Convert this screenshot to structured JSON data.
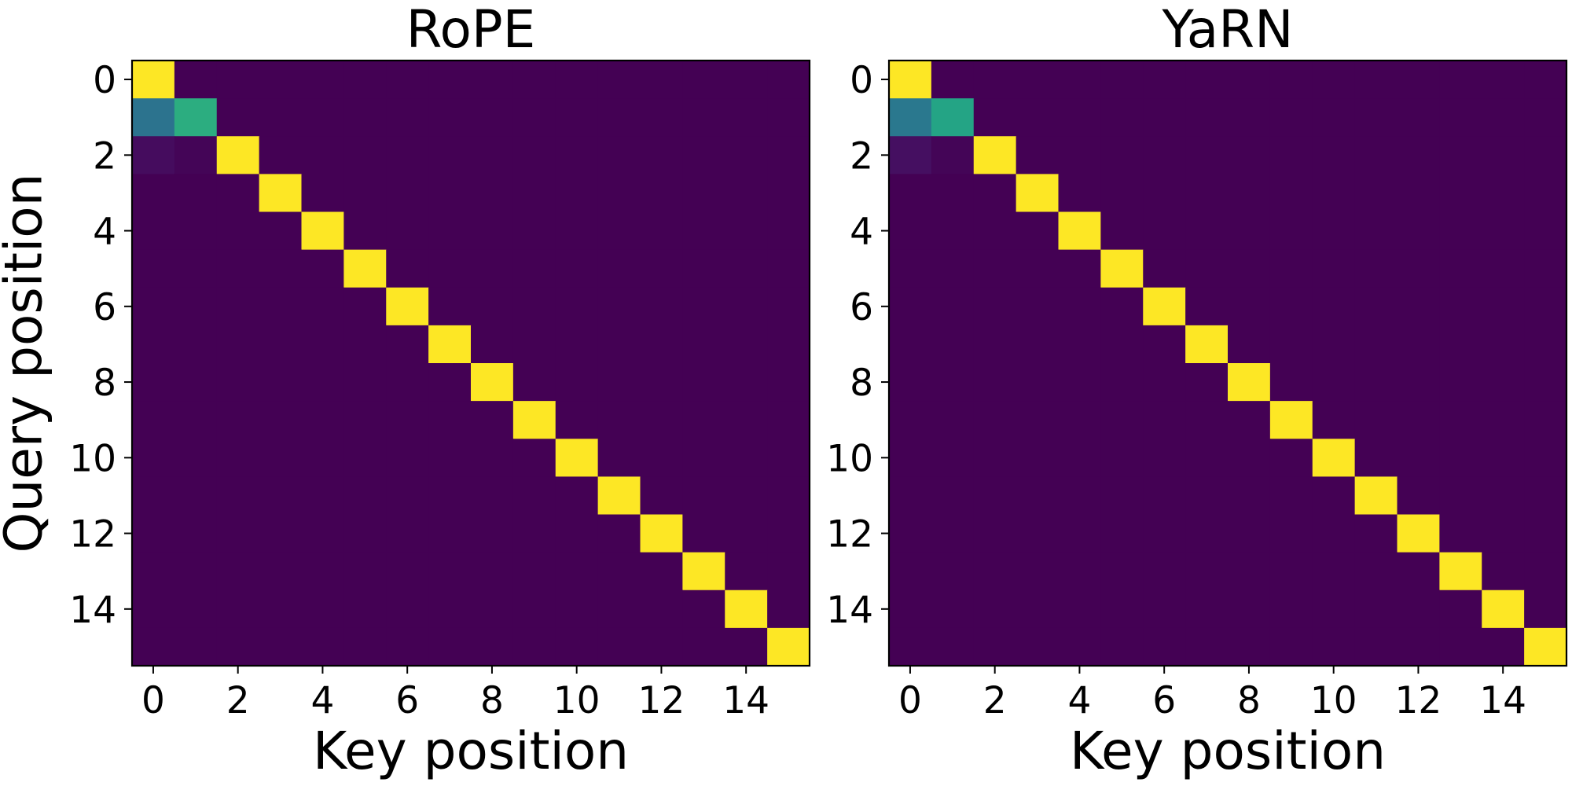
{
  "colormap": {
    "name": "viridis",
    "stops": [
      "#440154",
      "#482878",
      "#3e4989",
      "#31688e",
      "#26828e",
      "#1f9e89",
      "#35b779",
      "#6ece58",
      "#b5de2b",
      "#fde725"
    ]
  },
  "shared_ylabel": "Query position",
  "chart_data": [
    {
      "type": "heatmap",
      "title": "RoPE",
      "xlabel": "Key position",
      "ylabel": "Query position",
      "size": 16,
      "xticks": [
        0,
        2,
        4,
        6,
        8,
        10,
        12,
        14
      ],
      "yticks": [
        0,
        2,
        4,
        6,
        8,
        10,
        12,
        14
      ],
      "xlim": [
        -0.5,
        15.5
      ],
      "ylim": [
        15.5,
        -0.5
      ],
      "colormap": "viridis",
      "value_range": [
        0,
        1
      ],
      "diagonal_value": 1.0,
      "background_value": 0.0,
      "cells": [
        {
          "row": 1,
          "col": 0,
          "value": 0.38
        },
        {
          "row": 1,
          "col": 1,
          "value": 0.62
        },
        {
          "row": 2,
          "col": 0,
          "value": 0.03
        },
        {
          "row": 2,
          "col": 1,
          "value": 0.01
        }
      ]
    },
    {
      "type": "heatmap",
      "title": "YaRN",
      "xlabel": "Key position",
      "ylabel": "",
      "size": 16,
      "xticks": [
        0,
        2,
        4,
        6,
        8,
        10,
        12,
        14
      ],
      "yticks": [
        0,
        2,
        4,
        6,
        8,
        10,
        12,
        14
      ],
      "xlim": [
        -0.5,
        15.5
      ],
      "ylim": [
        15.5,
        -0.5
      ],
      "colormap": "viridis",
      "value_range": [
        0,
        1
      ],
      "diagonal_value": 1.0,
      "background_value": 0.0,
      "cells": [
        {
          "row": 1,
          "col": 0,
          "value": 0.4
        },
        {
          "row": 1,
          "col": 1,
          "value": 0.58
        },
        {
          "row": 2,
          "col": 0,
          "value": 0.04
        },
        {
          "row": 2,
          "col": 1,
          "value": 0.01
        }
      ]
    }
  ]
}
